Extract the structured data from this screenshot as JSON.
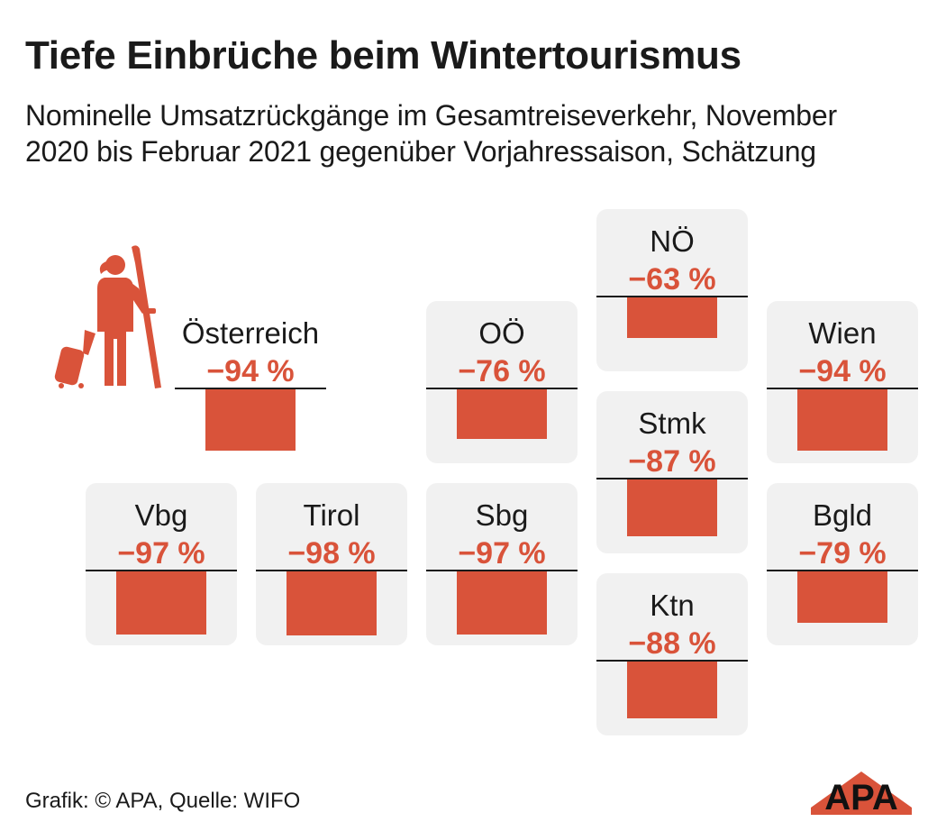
{
  "header": {
    "title": "Tiefe Einbrüche beim Wintertourismus",
    "subtitle": "Nominelle Umsatzrückgänge im Gesamtreiseverkehr, November 2020 bis Februar 2021 gegenüber Vorjahressaison, Schätzung"
  },
  "chart_data": {
    "type": "bar",
    "title": "Tiefe Einbrüche beim Wintertourismus",
    "subtitle": "Nominelle Umsatzrückgänge im Gesamtreiseverkehr, November 2020 bis Februar 2021 gegenüber Vorjahressaison, Schätzung",
    "unit": "%",
    "ylim": [
      -100,
      0
    ],
    "categories": [
      "Österreich",
      "NÖ",
      "OÖ",
      "Wien",
      "Stmk",
      "Vbg",
      "Tirol",
      "Sbg",
      "Bgld",
      "Ktn"
    ],
    "values": [
      -94,
      -63,
      -76,
      -94,
      -87,
      -97,
      -98,
      -97,
      -79,
      -88
    ],
    "labels": [
      "−94 %",
      "−63 %",
      "−76 %",
      "−94 %",
      "−87 %",
      "−97 %",
      "−98 %",
      "−97 %",
      "−79 %",
      "−88 %"
    ],
    "bar_color": "#d9533a",
    "tile_color": "#f1f1f1"
  },
  "footer": {
    "source": "Grafik: © APA, Quelle: WIFO",
    "logo_text": "APA"
  },
  "icons": {
    "traveler": "traveler-with-skis-icon",
    "logo": "apa-logo"
  }
}
